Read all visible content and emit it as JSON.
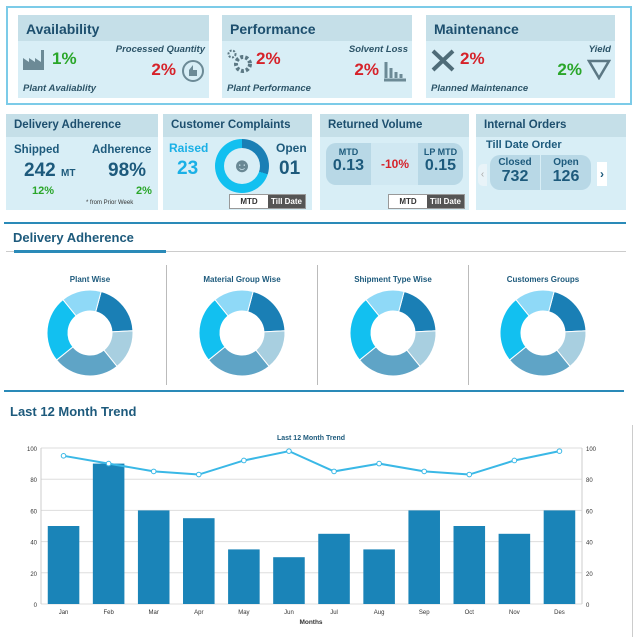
{
  "kpis": [
    {
      "title": "Availability",
      "left_label": "Plant Avaliablity",
      "left_value": "1%",
      "left_icon": "factory-icon",
      "right_label": "Processed Quantity",
      "right_value": "2%",
      "right_icon": "thumbs-up-icon"
    },
    {
      "title": "Performance",
      "left_label": "Plant Performance",
      "left_value": "2%",
      "left_icon": "gears-icon",
      "right_label": "Solvent Loss",
      "right_value": "2%",
      "right_icon": "bar-chart-down-icon"
    },
    {
      "title": "Maintenance",
      "left_label": "Planned Maintenance",
      "left_value": "2%",
      "left_icon": "tools-icon",
      "right_label": "Yield",
      "right_value": "2%",
      "right_icon": "triangle-down-icon"
    }
  ],
  "delivery": {
    "title": "Delivery Adherence",
    "shipped_label": "Shipped",
    "shipped_value": "242",
    "shipped_unit": "MT",
    "shipped_change": "12%",
    "adherence_label": "Adherence",
    "adherence_value": "98%",
    "adherence_change": "2%",
    "note": "* from Prior Week"
  },
  "complaints": {
    "title": "Customer Complaints",
    "raised_label": "Raised",
    "raised_value": "23",
    "open_label": "Open",
    "open_value": "01",
    "toggle": [
      "MTD",
      "Till Date"
    ],
    "active_toggle": "Till Date"
  },
  "returned": {
    "title": "Returned Volume",
    "mtd_label": "MTD",
    "mtd_value": "0.13",
    "change": "-10%",
    "lp_label": "LP MTD",
    "lp_value": "0.15",
    "toggle": [
      "MTD",
      "Till Date"
    ],
    "active_toggle": "Till Date"
  },
  "orders": {
    "title": "Internal Orders",
    "subtitle": "Till Date Order",
    "closed_label": "Closed",
    "closed_value": "732",
    "open_label": "Open",
    "open_value": "126"
  },
  "adherence_section": {
    "title": "Delivery Adherence",
    "donuts": [
      {
        "title": "Plant Wise",
        "values": [
          20,
          15,
          25,
          25,
          15
        ]
      },
      {
        "title": "Material Group Wise",
        "values": [
          20,
          15,
          25,
          25,
          15
        ]
      },
      {
        "title": "Shipment Type Wise",
        "values": [
          20,
          15,
          25,
          25,
          15
        ]
      },
      {
        "title": "Customers Groups",
        "values": [
          20,
          15,
          25,
          25,
          15
        ]
      }
    ],
    "colors": [
      "#1a7fb5",
      "#a8cfe0",
      "#5fa4c6",
      "#12c0f0",
      "#8fd9f7"
    ]
  },
  "trend_section": {
    "title": "Last 12 Month Trend"
  },
  "chart_data": {
    "type": "bar",
    "title": "Last 12 Month Trend",
    "xlabel": "Months",
    "ylabel": "",
    "ylim": [
      0,
      100
    ],
    "y2lim": [
      0,
      100
    ],
    "yticks": [
      0,
      20,
      40,
      60,
      80,
      100
    ],
    "grid": true,
    "categories": [
      "Jan",
      "Feb",
      "Mar",
      "Apr",
      "May",
      "Jun",
      "Jul",
      "Aug",
      "Sep",
      "Oct",
      "Nov",
      "Des"
    ],
    "series": [
      {
        "type": "bar",
        "color": "#1a84b8",
        "values": [
          50,
          90,
          60,
          55,
          35,
          30,
          45,
          35,
          60,
          50,
          45,
          60
        ]
      },
      {
        "type": "line",
        "color": "#3ab8e6",
        "values": [
          95,
          90,
          85,
          83,
          92,
          98,
          85,
          90,
          85,
          83,
          92,
          98
        ]
      }
    ]
  }
}
